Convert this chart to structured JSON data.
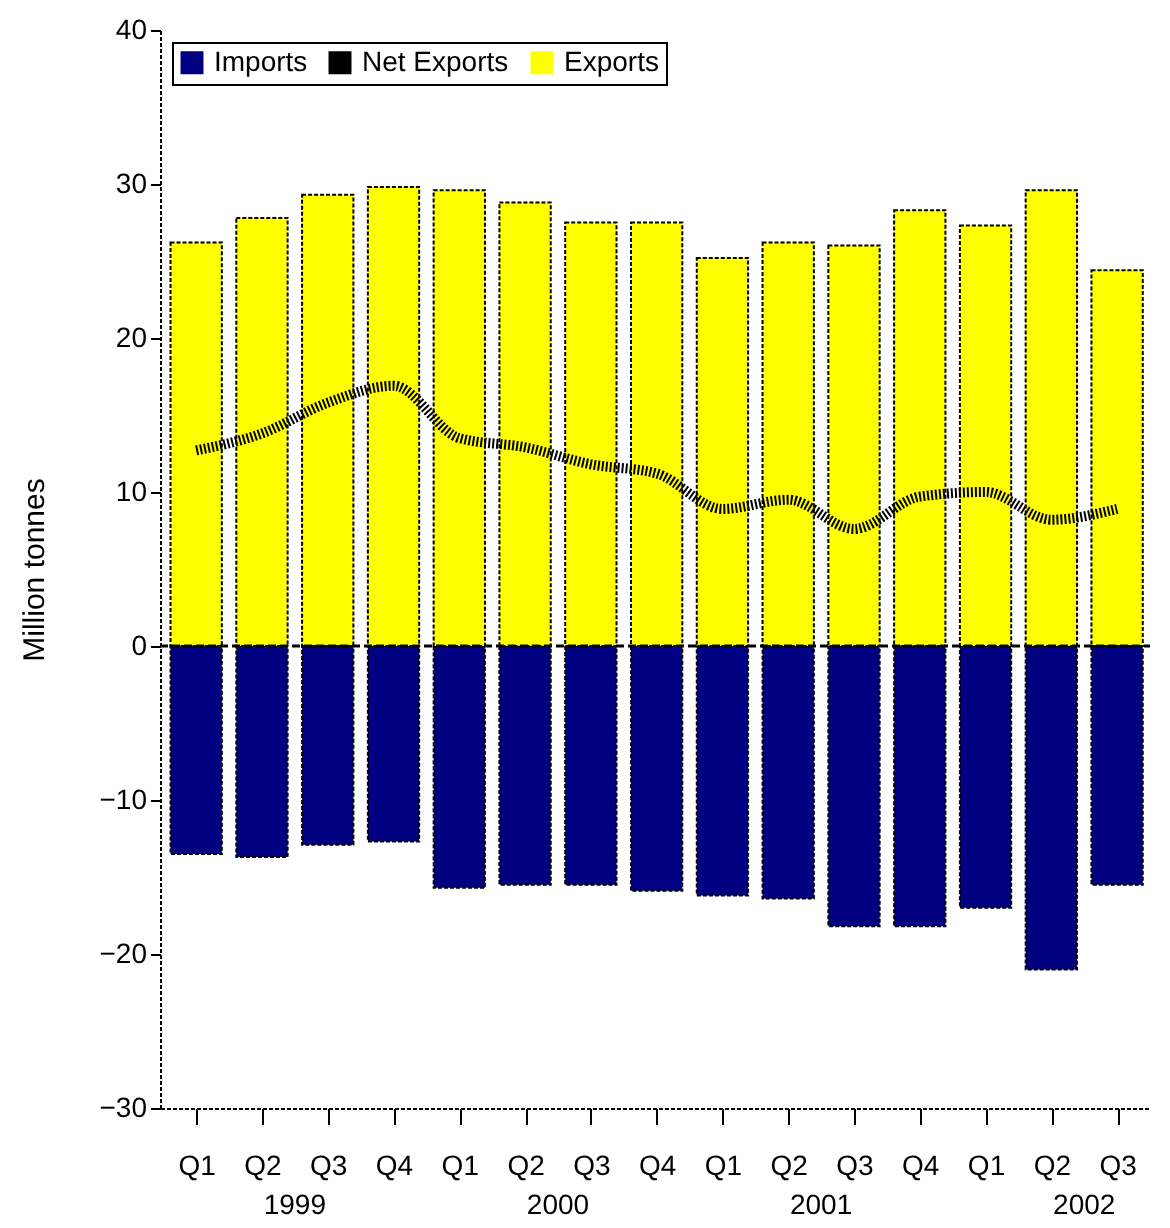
{
  "chart_data": {
    "type": "bar",
    "ylabel": "Million tonnes",
    "categories": [
      "Q1",
      "Q2",
      "Q3",
      "Q4",
      "Q1",
      "Q2",
      "Q3",
      "Q4",
      "Q1",
      "Q2",
      "Q3",
      "Q4",
      "Q1",
      "Q2",
      "Q3"
    ],
    "annotations": [
      "1999",
      "2000",
      "2001",
      "2002"
    ],
    "series": [
      {
        "name": "Imports",
        "color": "#000080",
        "values": [
          -13.5,
          -13.7,
          -12.9,
          -12.7,
          -15.7,
          -15.5,
          -15.5,
          -15.9,
          -16.2,
          -16.4,
          -18.2,
          -18.2,
          -17.0,
          -21.0,
          -15.5
        ]
      },
      {
        "name": "Net Exports",
        "type": "line",
        "color": "#000000",
        "line_style": "dotted",
        "values": [
          12.7,
          13.8,
          15.8,
          16.9,
          13.5,
          12.9,
          11.8,
          11.2,
          8.9,
          9.5,
          7.6,
          9.7,
          10.0,
          8.2,
          8.9
        ]
      },
      {
        "name": "Exports",
        "color": "#ffff00",
        "values": [
          26.2,
          27.8,
          29.3,
          29.8,
          29.6,
          28.8,
          27.5,
          27.5,
          25.2,
          26.2,
          26.0,
          28.3,
          27.3,
          29.6,
          24.4
        ]
      }
    ],
    "ylim": [
      -30,
      40
    ],
    "yticks": [
      -30,
      -20,
      -10,
      0,
      10,
      20,
      30,
      40
    ],
    "ref_lines": [
      {
        "axis": "y",
        "value": 0
      }
    ],
    "stacked": true,
    "legend": "top left",
    "grid": false
  }
}
